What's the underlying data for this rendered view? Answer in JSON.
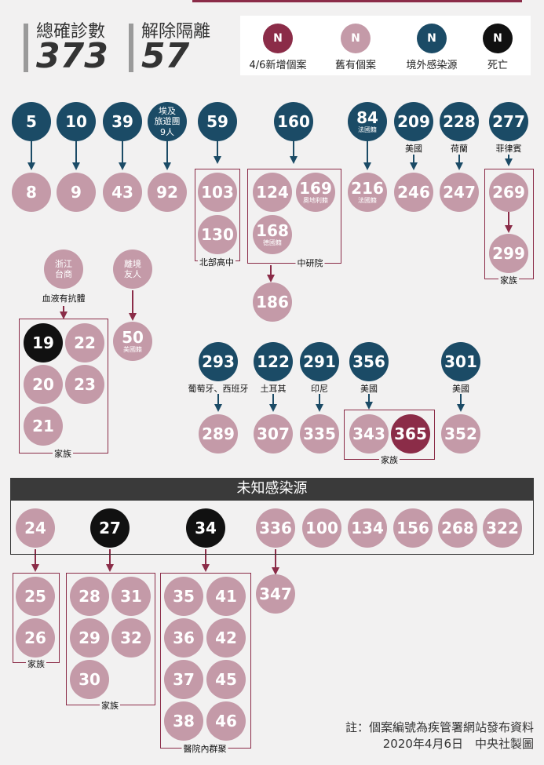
{
  "header": {
    "total_label": "總確診數",
    "total_value": "373",
    "released_label": "解除隔離",
    "released_value": "57"
  },
  "legend": {
    "symbol": "N",
    "items": [
      {
        "label": "4/6新增個案",
        "color": "#8b2c48"
      },
      {
        "label": "舊有個案",
        "color": "#c49aa8"
      },
      {
        "label": "境外感染源",
        "color": "#1b4b66"
      },
      {
        "label": "死亡",
        "color": "#111111"
      }
    ]
  },
  "cases": {
    "n5": "5",
    "n10": "10",
    "n39": "39",
    "n59": "59",
    "n160": "160",
    "n84": "84",
    "n209": "209",
    "n228": "228",
    "n277": "277",
    "egypt_line1": "埃及",
    "egypt_line2": "旅遊團",
    "egypt_line3": "9人",
    "n84_sub": "法國籍",
    "n8": "8",
    "n9": "9",
    "n43": "43",
    "n92": "92",
    "n103": "103",
    "n130": "130",
    "n124": "124",
    "n169": "169",
    "n169_sub": "奧地利籍",
    "n168": "168",
    "n168_sub": "德國籍",
    "n186": "186",
    "n216": "216",
    "n216_sub": "法國籍",
    "n246": "246",
    "n247": "247",
    "n269": "269",
    "n299": "299",
    "zj_line1": "浙江",
    "zj_line2": "台商",
    "friend_line1": "離境",
    "friend_line2": "友人",
    "n19": "19",
    "n22": "22",
    "n20": "20",
    "n23": "23",
    "n21": "21",
    "n50": "50",
    "n50_sub": "美國籍",
    "n293": "293",
    "n122": "122",
    "n291": "291",
    "n356": "356",
    "n301": "301",
    "n289": "289",
    "n307": "307",
    "n335": "335",
    "n343": "343",
    "n365": "365",
    "n352": "352",
    "n24": "24",
    "n27": "27",
    "n34": "34",
    "n336": "336",
    "n100": "100",
    "n134": "134",
    "n156": "156",
    "n268": "268",
    "n322": "322",
    "n25": "25",
    "n26": "26",
    "n28": "28",
    "n31": "31",
    "n29": "29",
    "n32": "32",
    "n30": "30",
    "n35": "35",
    "n41": "41",
    "n36": "36",
    "n42": "42",
    "n37": "37",
    "n45": "45",
    "n38": "38",
    "n46": "46",
    "n347": "347"
  },
  "labels": {
    "us": "美國",
    "nl": "荷蘭",
    "ph": "菲律賓",
    "pt_es": "葡萄牙、西班牙",
    "tr": "土耳其",
    "id": "印尼",
    "us2": "美國",
    "us3": "美國",
    "antibody": "血液有抗體"
  },
  "groups": {
    "north_high": "北部高中",
    "academia": "中研院",
    "family_269": "家族",
    "family_19": "家族",
    "family_343": "家族",
    "family_24": "家族",
    "family_27": "家族",
    "hospital": "醫院內群聚"
  },
  "unknown_title": "未知感染源",
  "note": {
    "line1": "註：個案編號為疾管署網站發布資料",
    "line2": "2020年4月6日　中央社製圖"
  }
}
